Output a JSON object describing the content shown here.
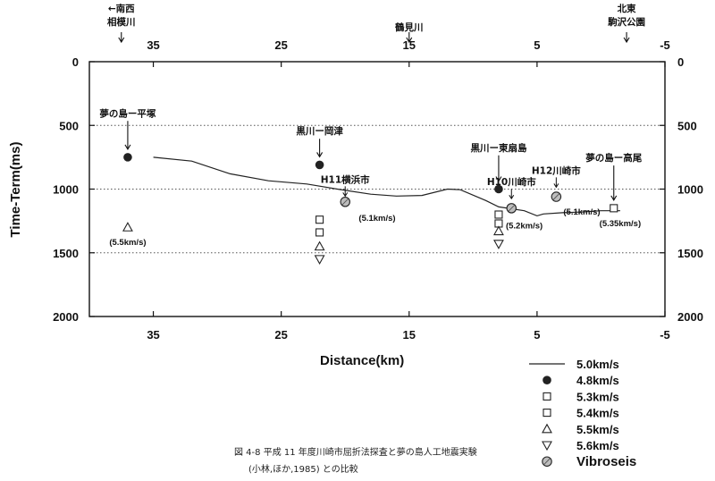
{
  "chart_data": {
    "type": "scatter",
    "xlabel": "Distance(km)",
    "ylabel": "Time-Term(ms)",
    "xlim": [
      40,
      -5
    ],
    "ylim": [
      0,
      2000
    ],
    "x_ticks": [
      "35",
      "25",
      "15",
      "5",
      "-5"
    ],
    "x_tick_values": [
      35,
      25,
      15,
      5,
      -5
    ],
    "y_ticks": [
      "0",
      "500",
      "1000",
      "1500",
      "2000"
    ],
    "y_tick_values": [
      0,
      500,
      1000,
      1500,
      2000
    ],
    "grid": "dotted horizontal at 500, 1000, 1500",
    "series": [
      {
        "name": "5.0km/s",
        "marker": "line",
        "points": [
          [
            35,
            750
          ],
          [
            32,
            780
          ],
          [
            29,
            880
          ],
          [
            26,
            935
          ],
          [
            23,
            960
          ],
          [
            20,
            1010
          ],
          [
            18,
            1040
          ],
          [
            16,
            1055
          ],
          [
            14,
            1050
          ],
          [
            12,
            1000
          ],
          [
            11,
            1005
          ],
          [
            9,
            1090
          ],
          [
            8,
            1140
          ],
          [
            6,
            1170
          ],
          [
            5,
            1210
          ],
          [
            4.5,
            1195
          ],
          [
            3,
            1185
          ],
          [
            1.5,
            1180
          ],
          [
            0,
            1170
          ],
          [
            -1.5,
            1170
          ]
        ]
      },
      {
        "name": "4.8km/s",
        "marker": "filled-circle",
        "points": [
          [
            37,
            750
          ],
          [
            22,
            810
          ],
          [
            8,
            1000
          ]
        ]
      },
      {
        "name": "5.3km/s",
        "marker": "square",
        "points": [
          [
            22,
            1240
          ],
          [
            8,
            1200
          ],
          [
            -1,
            1150
          ]
        ]
      },
      {
        "name": "5.4km/s",
        "marker": "square",
        "points": [
          [
            22,
            1340
          ],
          [
            8,
            1270
          ]
        ]
      },
      {
        "name": "5.5km/s",
        "marker": "triangle-up",
        "points": [
          [
            37,
            1300
          ],
          [
            22,
            1450
          ],
          [
            8,
            1330
          ]
        ]
      },
      {
        "name": "5.6km/s",
        "marker": "triangle-down",
        "points": [
          [
            22,
            1550
          ],
          [
            8,
            1430
          ]
        ]
      },
      {
        "name": "Vibroseis",
        "marker": "hatched-circle",
        "points": [
          [
            20,
            1100
          ],
          [
            7,
            1150
          ],
          [
            3.5,
            1060
          ]
        ]
      }
    ],
    "top_axis": {
      "ticks": [
        "35",
        "25",
        "15",
        "5",
        "-5"
      ],
      "labels": [
        {
          "x": 37.5,
          "line1": "←南西",
          "line2": "相模川"
        },
        {
          "x": 15,
          "line1": "鶴見川",
          "line2": ""
        },
        {
          "x": -2,
          "line1": "北東",
          "line2": "駒沢公園"
        }
      ]
    },
    "annotations": [
      {
        "text": "夢の島ー平塚",
        "x": 37,
        "y": 430
      },
      {
        "text": "黒川ー岡津",
        "x": 22,
        "y": 570
      },
      {
        "text": "H11横浜市",
        "x": 20,
        "y": 950
      },
      {
        "text": "黒川ー東扇島",
        "x": 8,
        "y": 700
      },
      {
        "text": "H10川崎市",
        "x": 7,
        "y": 970
      },
      {
        "text": "H12川崎市",
        "x": 3.5,
        "y": 880
      },
      {
        "text": "夢の島ー高尾",
        "x": -1,
        "y": 780
      },
      {
        "text": "(5.5km/s)",
        "x": 37,
        "y": 1440
      },
      {
        "text": "(5.1km/s)",
        "x": 17.5,
        "y": 1250
      },
      {
        "text": "(5.2km/s)",
        "x": 6,
        "y": 1310
      },
      {
        "text": "(5.1km/s)",
        "x": 1.5,
        "y": 1200
      },
      {
        "text": "(5.35km/s)",
        "x": -1.5,
        "y": 1290
      }
    ],
    "caption": [
      "図 4-8  平成 11 年度川崎市屈折法探査と夢の島人工地震実験",
      "(小林,ほか,1985) との比較"
    ]
  }
}
